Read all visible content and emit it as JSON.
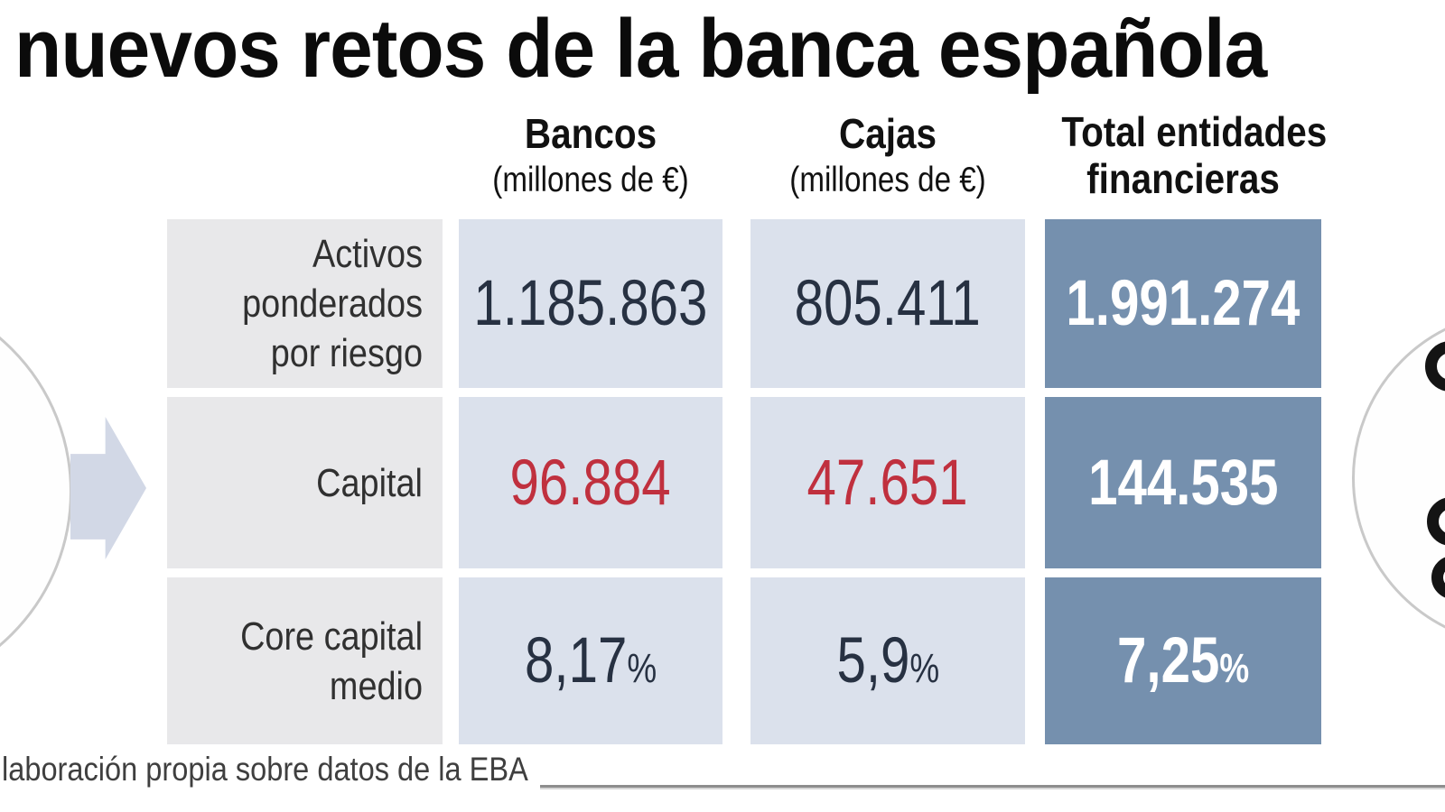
{
  "title": "nuevos retos de la banca española",
  "header": {
    "col1": {
      "label": "Bancos",
      "sublabel": "(millones de €)"
    },
    "col2": {
      "label": "Cajas",
      "sublabel": "(millones de €)"
    },
    "col3": {
      "line1": "Total entidades",
      "line2": "financieras"
    }
  },
  "rows": {
    "r1": {
      "label": "Activos ponderados por riesgo",
      "bancos": "1.185.863",
      "cajas": "805.411",
      "total": "1.991.274"
    },
    "r2": {
      "label": "Capital",
      "bancos": "96.884",
      "cajas": "47.651",
      "total": "144.535"
    },
    "r3": {
      "label": "Core capital medio",
      "bancos": "8,17",
      "cajas": "5,9",
      "total": "7,25",
      "suffix": "%"
    }
  },
  "source": {
    "text": "laboración propia sobre datos de la EBA"
  },
  "colors": {
    "total_column_blue": "#7590ae",
    "value_cell_blue": "#dbe1ec",
    "label_cell_grey": "#e8e8ea",
    "value_navy": "#273142",
    "value_red": "#c0303e",
    "value_white": "#ffffff",
    "arrow_grey_blue": "#d2d8e6",
    "circle_border_grey": "#c9c9c9"
  },
  "chart_data": {
    "type": "table",
    "title": "nuevos retos de la banca española",
    "columns": [
      "Bancos (millones de €)",
      "Cajas (millones de €)",
      "Total entidades financieras"
    ],
    "row_labels": [
      "Activos ponderados por riesgo",
      "Capital",
      "Core capital medio"
    ],
    "values": [
      [
        1185863,
        805411,
        1991274
      ],
      [
        96884,
        47651,
        144535
      ],
      [
        "8,17%",
        "5,9%",
        "7,25%"
      ]
    ],
    "units": {
      "rows_1_2": "millones de €",
      "row_3": "%"
    },
    "source": "laboración propia sobre datos de la EBA"
  }
}
